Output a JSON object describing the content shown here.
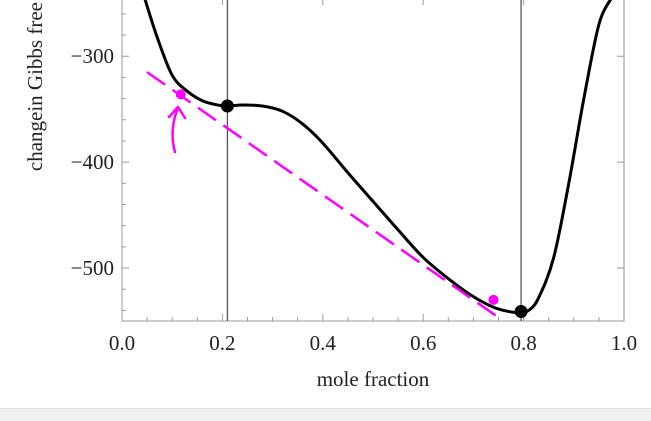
{
  "chart_data": {
    "type": "line",
    "title": "",
    "xlabel": "mole fraction",
    "ylabel": "changein Gibbs free",
    "xlim": [
      0.0,
      1.0
    ],
    "ylim": [
      -550,
      -245
    ],
    "x_ticks": [
      {
        "value": 0.0,
        "label": "0.0"
      },
      {
        "value": 0.2,
        "label": "0.2"
      },
      {
        "value": 0.4,
        "label": "0.4"
      },
      {
        "value": 0.6,
        "label": "0.6"
      },
      {
        "value": 0.8,
        "label": "0.8"
      },
      {
        "value": 1.0,
        "label": "1.0"
      }
    ],
    "y_ticks": [
      {
        "value": -300,
        "label": "−300"
      },
      {
        "value": -400,
        "label": "−400"
      },
      {
        "value": -500,
        "label": "−500"
      }
    ],
    "series": [
      {
        "style": "solid",
        "color": "#000000",
        "x": [
          0.045,
          0.07,
          0.1,
          0.13,
          0.16,
          0.19,
          0.21,
          0.24,
          0.28,
          0.32,
          0.36,
          0.4,
          0.45,
          0.5,
          0.55,
          0.6,
          0.65,
          0.7,
          0.74,
          0.77,
          0.79,
          0.81,
          0.83,
          0.86,
          0.89,
          0.92,
          0.95,
          0.975
        ],
        "y": [
          -245,
          -282,
          -318,
          -333,
          -342,
          -346,
          -347,
          -346,
          -347,
          -352,
          -364,
          -382,
          -410,
          -437,
          -464,
          -490,
          -510,
          -527,
          -537,
          -541,
          -542,
          -540,
          -528,
          -490,
          -420,
          -340,
          -270,
          -245
        ]
      },
      {
        "style": "dashed",
        "color": "#ff00ff",
        "x": [
          0.05,
          0.745
        ],
        "y": [
          -315,
          -545
        ]
      }
    ],
    "points": [
      {
        "x": 0.21,
        "y": -347,
        "color": "#000000"
      },
      {
        "x": 0.795,
        "y": -541,
        "color": "#000000"
      },
      {
        "x": 0.117,
        "y": -336,
        "color": "#ff00ff"
      },
      {
        "x": 0.74,
        "y": -530,
        "color": "#ff00ff"
      }
    ],
    "vlines": [
      0.21,
      0.795
    ],
    "grid": false,
    "frame_color": "#9a9a9a",
    "annotation_color": "#ff00ff"
  }
}
